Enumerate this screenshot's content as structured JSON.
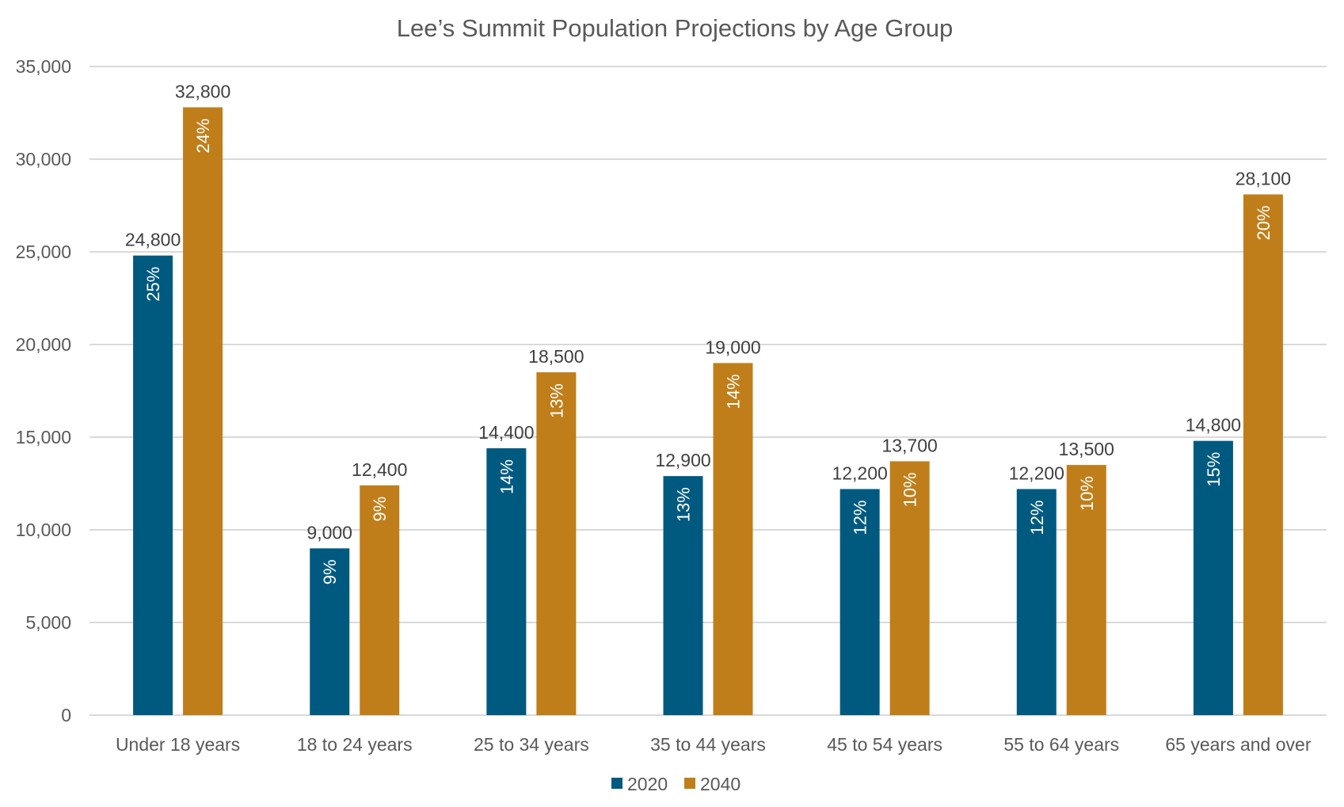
{
  "chart_data": {
    "type": "bar",
    "title": "Lee’s Summit Population Projections by Age Group",
    "xlabel": "",
    "ylabel": "",
    "ylim": [
      0,
      35000
    ],
    "yticks": [
      0,
      5000,
      10000,
      15000,
      20000,
      25000,
      30000,
      35000
    ],
    "ytick_labels": [
      "0",
      "5,000",
      "10,000",
      "15,000",
      "20,000",
      "25,000",
      "30,000",
      "35,000"
    ],
    "grid": true,
    "legend_position": "bottom",
    "categories": [
      "Under 18 years",
      "18 to 24 years",
      "25 to 34 years",
      "35 to 44 years",
      "45 to 54 years",
      "55 to 64 years",
      "65 years and over"
    ],
    "series": [
      {
        "name": "2020",
        "color": "#005a80",
        "values": [
          24800,
          9000,
          14400,
          12900,
          12200,
          12200,
          14800
        ],
        "value_labels": [
          "24,800",
          "9,000",
          "14,400",
          "12,900",
          "12,200",
          "12,200",
          "14,800"
        ],
        "percent_labels": [
          "25%",
          "9%",
          "14%",
          "13%",
          "12%",
          "12%",
          "15%"
        ]
      },
      {
        "name": "2040",
        "color": "#c07e1a",
        "values": [
          32800,
          12400,
          18500,
          19000,
          13700,
          13500,
          28100
        ],
        "value_labels": [
          "32,800",
          "12,400",
          "18,500",
          "19,000",
          "13,700",
          "13,500",
          "28,100"
        ],
        "percent_labels": [
          "24%",
          "9%",
          "13%",
          "14%",
          "10%",
          "10%",
          "20%"
        ]
      }
    ]
  }
}
